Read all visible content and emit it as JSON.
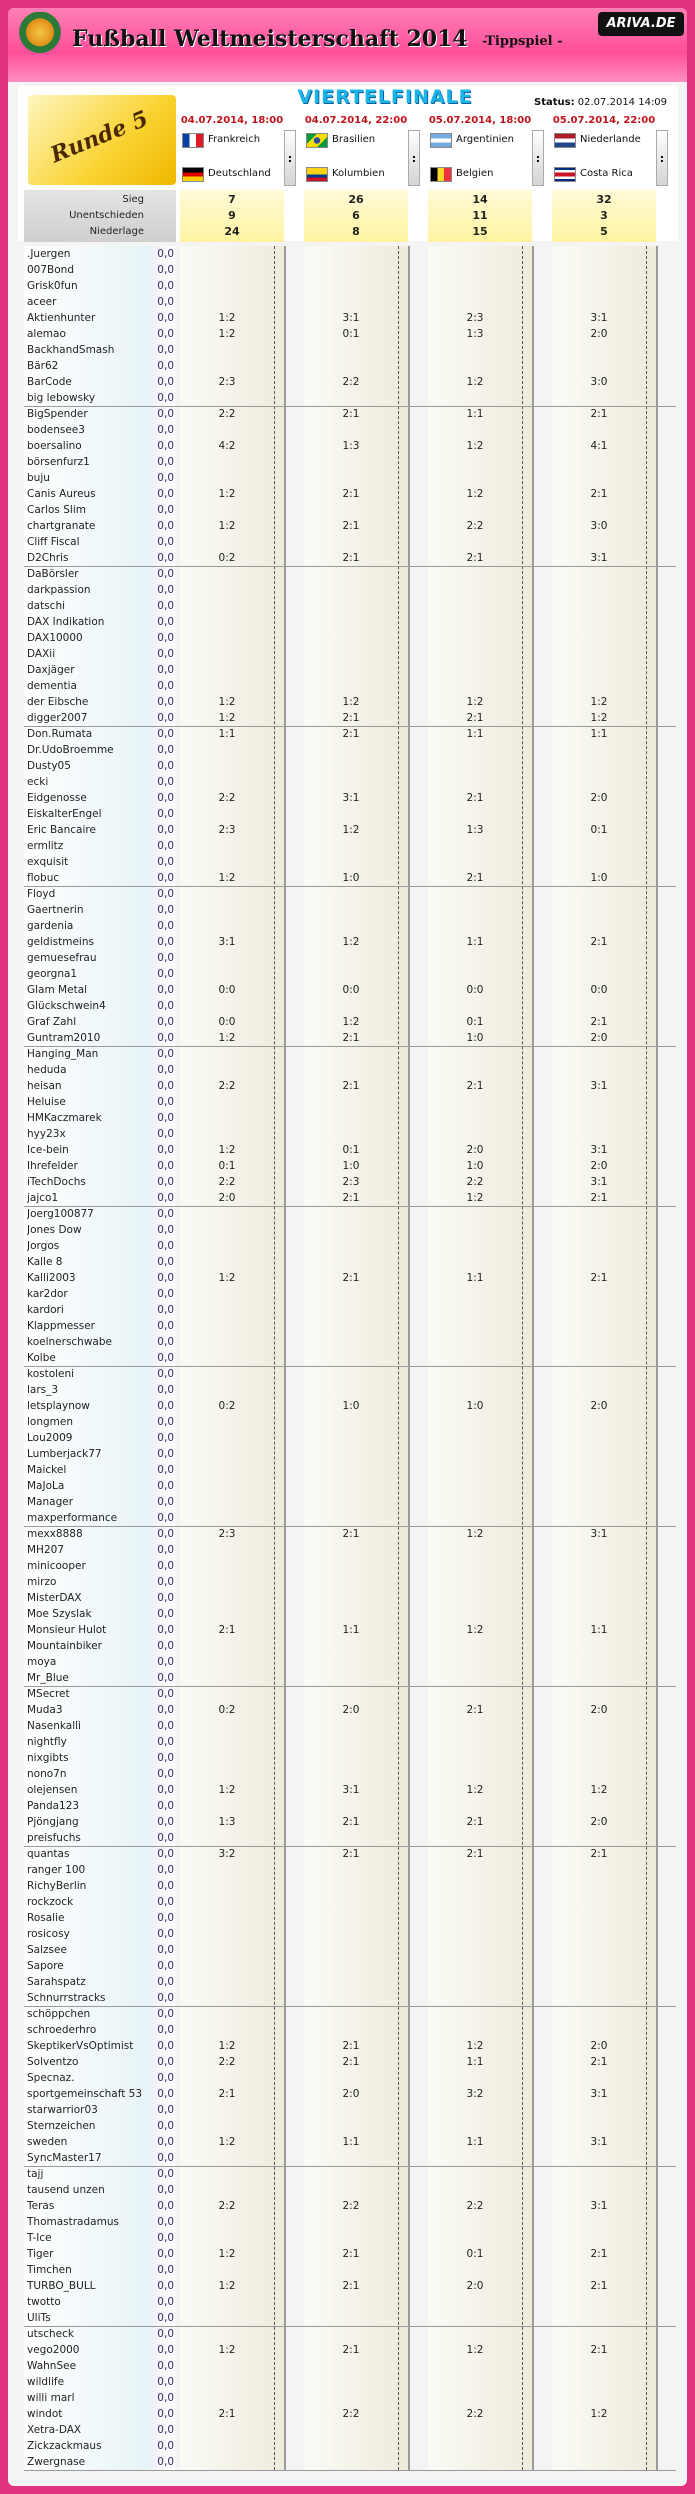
{
  "header": {
    "title": "Fußball Weltmeisterschaft 2014",
    "subtitle": "-Tippspiel -",
    "logo": "ARIVA.DE"
  },
  "round_label": "Runde 5",
  "stage": "VIERTELFINALE",
  "status": {
    "label": "Status:",
    "value": "02.07.2014 14:09"
  },
  "separator": ":",
  "matches": [
    {
      "date": "04.07.2014, 18:00",
      "home": "Frankreich",
      "away": "Deutschland"
    },
    {
      "date": "04.07.2014, 22:00",
      "home": "Brasilien",
      "away": "Kolumbien"
    },
    {
      "date": "05.07.2014, 18:00",
      "home": "Argentinien",
      "away": "Belgien"
    },
    {
      "date": "05.07.2014, 22:00",
      "home": "Niederlande",
      "away": "Costa Rica"
    }
  ],
  "stats": [
    {
      "label": "Sieg",
      "values": [
        7,
        26,
        14,
        32
      ]
    },
    {
      "label": "Unentschieden",
      "values": [
        9,
        6,
        11,
        3
      ]
    },
    {
      "label": "Niederlage",
      "values": [
        24,
        8,
        15,
        5
      ]
    }
  ],
  "players": [
    [
      ".Juergen",
      "0,0"
    ],
    [
      "007Bond",
      "0,0"
    ],
    [
      "Grisk0fun",
      "0,0"
    ],
    [
      "aceer",
      "0,0"
    ],
    [
      "Aktienhunter",
      "0,0",
      [
        "1:2",
        "3:1",
        "2:3",
        "3:1"
      ]
    ],
    [
      "alemao",
      "0,0",
      [
        "1:2",
        "0:1",
        "1:3",
        "2:0"
      ]
    ],
    [
      "BackhandSmash",
      "0,0"
    ],
    [
      "Bär62",
      "0,0"
    ],
    [
      "BarCode",
      "0,0",
      [
        "2:3",
        "2:2",
        "1:2",
        "3:0"
      ]
    ],
    [
      "big lebowsky",
      "0,0"
    ],
    [
      "BigSpender",
      "0,0",
      [
        "2:2",
        "2:1",
        "1:1",
        "2:1"
      ]
    ],
    [
      "bodensee3",
      "0,0"
    ],
    [
      "boersalino",
      "0,0",
      [
        "4:2",
        "1:3",
        "1:2",
        "4:1"
      ]
    ],
    [
      "börsenfurz1",
      "0,0"
    ],
    [
      "buju",
      "0,0"
    ],
    [
      "Canis Aureus",
      "0,0",
      [
        "1:2",
        "2:1",
        "1:2",
        "2:1"
      ]
    ],
    [
      "Carlos Slim",
      "0,0"
    ],
    [
      "chartgranate",
      "0,0",
      [
        "1:2",
        "2:1",
        "2:2",
        "3:0"
      ]
    ],
    [
      "Cliff Fiscal",
      "0,0"
    ],
    [
      "D2Chris",
      "0,0",
      [
        "0:2",
        "2:1",
        "2:1",
        "3:1"
      ]
    ],
    [
      "DaBörsler",
      "0,0"
    ],
    [
      "darkpassion",
      "0,0"
    ],
    [
      "datschi",
      "0,0"
    ],
    [
      "DAX Indikation",
      "0,0"
    ],
    [
      "DAX10000",
      "0,0"
    ],
    [
      "DAXii",
      "0,0"
    ],
    [
      "Daxjäger",
      "0,0"
    ],
    [
      "dementia",
      "0,0"
    ],
    [
      "der Eibsche",
      "0,0",
      [
        "1:2",
        "1:2",
        "1:2",
        "1:2"
      ]
    ],
    [
      "digger2007",
      "0,0",
      [
        "1:2",
        "2:1",
        "2:1",
        "1:2"
      ]
    ],
    [
      "Don.Rumata",
      "0,0",
      [
        "1:1",
        "2:1",
        "1:1",
        "1:1"
      ]
    ],
    [
      "Dr.UdoBroemme",
      "0,0"
    ],
    [
      "Dusty05",
      "0,0"
    ],
    [
      "ecki",
      "0,0"
    ],
    [
      "Eidgenosse",
      "0,0",
      [
        "2:2",
        "3:1",
        "2:1",
        "2:0"
      ]
    ],
    [
      "EiskalterEngel",
      "0,0"
    ],
    [
      "Eric Bancaire",
      "0,0",
      [
        "2:3",
        "1:2",
        "1:3",
        "0:1"
      ]
    ],
    [
      "ermlitz",
      "0,0"
    ],
    [
      "exquisit",
      "0,0"
    ],
    [
      "flobuc",
      "0,0",
      [
        "1:2",
        "1:0",
        "2:1",
        "1:0"
      ]
    ],
    [
      "Floyd",
      "0,0"
    ],
    [
      "Gaertnerin",
      "0,0"
    ],
    [
      "gardenia",
      "0,0"
    ],
    [
      "geldistmeins",
      "0,0",
      [
        "3:1",
        "1:2",
        "1:1",
        "2:1"
      ]
    ],
    [
      "gemuesefrau",
      "0,0"
    ],
    [
      "georgna1",
      "0,0"
    ],
    [
      "Glam Metal",
      "0,0",
      [
        "0:0",
        "0:0",
        "0:0",
        "0:0"
      ]
    ],
    [
      "Glückschwein4",
      "0,0"
    ],
    [
      "Graf Zahl",
      "0,0",
      [
        "0:0",
        "1:2",
        "0:1",
        "2:1"
      ]
    ],
    [
      "Guntram2010",
      "0,0",
      [
        "1:2",
        "2:1",
        "1:0",
        "2:0"
      ]
    ],
    [
      "Hanging_Man",
      "0,0"
    ],
    [
      "heduda",
      "0,0"
    ],
    [
      "heisan",
      "0,0",
      [
        "2:2",
        "2:1",
        "2:1",
        "3:1"
      ]
    ],
    [
      "Heluise",
      "0,0"
    ],
    [
      "HMKaczmarek",
      "0,0"
    ],
    [
      "hyy23x",
      "0,0"
    ],
    [
      "Ice-bein",
      "0,0",
      [
        "1:2",
        "0:1",
        "2:0",
        "3:1"
      ]
    ],
    [
      "Ihrefelder",
      "0,0",
      [
        "0:1",
        "1:0",
        "1:0",
        "2:0"
      ]
    ],
    [
      "iTechDochs",
      "0,0",
      [
        "2:2",
        "2:3",
        "2:2",
        "3:1"
      ]
    ],
    [
      "jajco1",
      "0,0",
      [
        "2:0",
        "2:1",
        "1:2",
        "2:1"
      ]
    ],
    [
      "Joerg100877",
      "0,0"
    ],
    [
      "Jones Dow",
      "0,0"
    ],
    [
      "Jorgos",
      "0,0"
    ],
    [
      "Kalle 8",
      "0,0"
    ],
    [
      "Kalli2003",
      "0,0",
      [
        "1:2",
        "2:1",
        "1:1",
        "2:1"
      ]
    ],
    [
      "kar2dor",
      "0,0"
    ],
    [
      "kardori",
      "0,0"
    ],
    [
      "Klappmesser",
      "0,0"
    ],
    [
      "koelnerschwabe",
      "0,0"
    ],
    [
      "Kolbe",
      "0,0"
    ],
    [
      "kostoleni",
      "0,0"
    ],
    [
      "lars_3",
      "0,0"
    ],
    [
      "letsplaynow",
      "0,0",
      [
        "0:2",
        "1:0",
        "1:0",
        "2:0"
      ]
    ],
    [
      "longmen",
      "0,0"
    ],
    [
      "Lou2009",
      "0,0"
    ],
    [
      "Lumberjack77",
      "0,0"
    ],
    [
      "Maickel",
      "0,0"
    ],
    [
      "MaJoLa",
      "0,0"
    ],
    [
      "Manager",
      "0,0"
    ],
    [
      "maxperformance",
      "0,0"
    ],
    [
      "mexx8888",
      "0,0",
      [
        "2:3",
        "2:1",
        "1:2",
        "3:1"
      ]
    ],
    [
      "MH207",
      "0,0"
    ],
    [
      "minicooper",
      "0,0"
    ],
    [
      "mirzo",
      "0,0"
    ],
    [
      "MisterDAX",
      "0,0"
    ],
    [
      "Moe Szyslak",
      "0,0"
    ],
    [
      "Monsieur Hulot",
      "0,0",
      [
        "2:1",
        "1:1",
        "1:2",
        "1:1"
      ]
    ],
    [
      "Mountainbiker",
      "0,0"
    ],
    [
      "moya",
      "0,0"
    ],
    [
      "Mr_Blue",
      "0,0"
    ],
    [
      "MSecret",
      "0,0"
    ],
    [
      "Muda3",
      "0,0",
      [
        "0:2",
        "2:0",
        "2:1",
        "2:0"
      ]
    ],
    [
      "Nasenkalli",
      "0,0"
    ],
    [
      "nightfly",
      "0,0"
    ],
    [
      "nixgibts",
      "0,0"
    ],
    [
      "nono7n",
      "0,0"
    ],
    [
      "olejensen",
      "0,0",
      [
        "1:2",
        "3:1",
        "1:2",
        "1:2"
      ]
    ],
    [
      "Panda123",
      "0,0"
    ],
    [
      "Pjöngjang",
      "0,0",
      [
        "1:3",
        "2:1",
        "2:1",
        "2:0"
      ]
    ],
    [
      "preisfuchs",
      "0,0"
    ],
    [
      "quantas",
      "0,0",
      [
        "3:2",
        "2:1",
        "2:1",
        "2:1"
      ]
    ],
    [
      "ranger 100",
      "0,0"
    ],
    [
      "RichyBerlin",
      "0,0"
    ],
    [
      "rockzock",
      "0,0"
    ],
    [
      "Rosalie",
      "0,0"
    ],
    [
      "rosicosy",
      "0,0"
    ],
    [
      "Salzsee",
      "0,0"
    ],
    [
      "Sapore",
      "0,0"
    ],
    [
      "Sarahspatz",
      "0,0"
    ],
    [
      "Schnurrstracks",
      "0,0"
    ],
    [
      "schöppchen",
      "0,0"
    ],
    [
      "schroederhro",
      "0,0"
    ],
    [
      "SkeptikerVsOptimist",
      "0,0",
      [
        "1:2",
        "2:1",
        "1:2",
        "2:0"
      ]
    ],
    [
      "Solventzo",
      "0,0",
      [
        "2:2",
        "2:1",
        "1:1",
        "2:1"
      ]
    ],
    [
      "Specnaz.",
      "0,0"
    ],
    [
      "sportgemeinschaft 53",
      "0,0",
      [
        "2:1",
        "2:0",
        "3:2",
        "3:1"
      ]
    ],
    [
      "starwarrior03",
      "0,0"
    ],
    [
      "Sternzeichen",
      "0,0"
    ],
    [
      "sweden",
      "0,0",
      [
        "1:2",
        "1:1",
        "1:1",
        "3:1"
      ]
    ],
    [
      "SyncMaster17",
      "0,0"
    ],
    [
      "tajj",
      "0,0"
    ],
    [
      "tausend unzen",
      "0,0"
    ],
    [
      "Teras",
      "0,0",
      [
        "2:2",
        "2:2",
        "2:2",
        "3:1"
      ]
    ],
    [
      "Thomastradamus",
      "0,0"
    ],
    [
      "T-Ice",
      "0,0"
    ],
    [
      "Tiger",
      "0,0",
      [
        "1:2",
        "2:1",
        "0:1",
        "2:1"
      ]
    ],
    [
      "Timchen",
      "0,0"
    ],
    [
      "TURBO_BULL",
      "0,0",
      [
        "1:2",
        "2:1",
        "2:0",
        "2:1"
      ]
    ],
    [
      "twotto",
      "0,0"
    ],
    [
      "UliTs",
      "0,0"
    ],
    [
      "utscheck",
      "0,0"
    ],
    [
      "vego2000",
      "0,0",
      [
        "1:2",
        "2:1",
        "1:2",
        "2:1"
      ]
    ],
    [
      "WahnSee",
      "0,0"
    ],
    [
      "wildlife",
      "0,0"
    ],
    [
      "willi marl",
      "0,0"
    ],
    [
      "windot",
      "0,0",
      [
        "2:1",
        "2:2",
        "2:2",
        "1:2"
      ]
    ],
    [
      "Xetra-DAX",
      "0,0"
    ],
    [
      "Zickzackmaus",
      "0,0"
    ],
    [
      "Zwergnase",
      "0,0"
    ]
  ]
}
